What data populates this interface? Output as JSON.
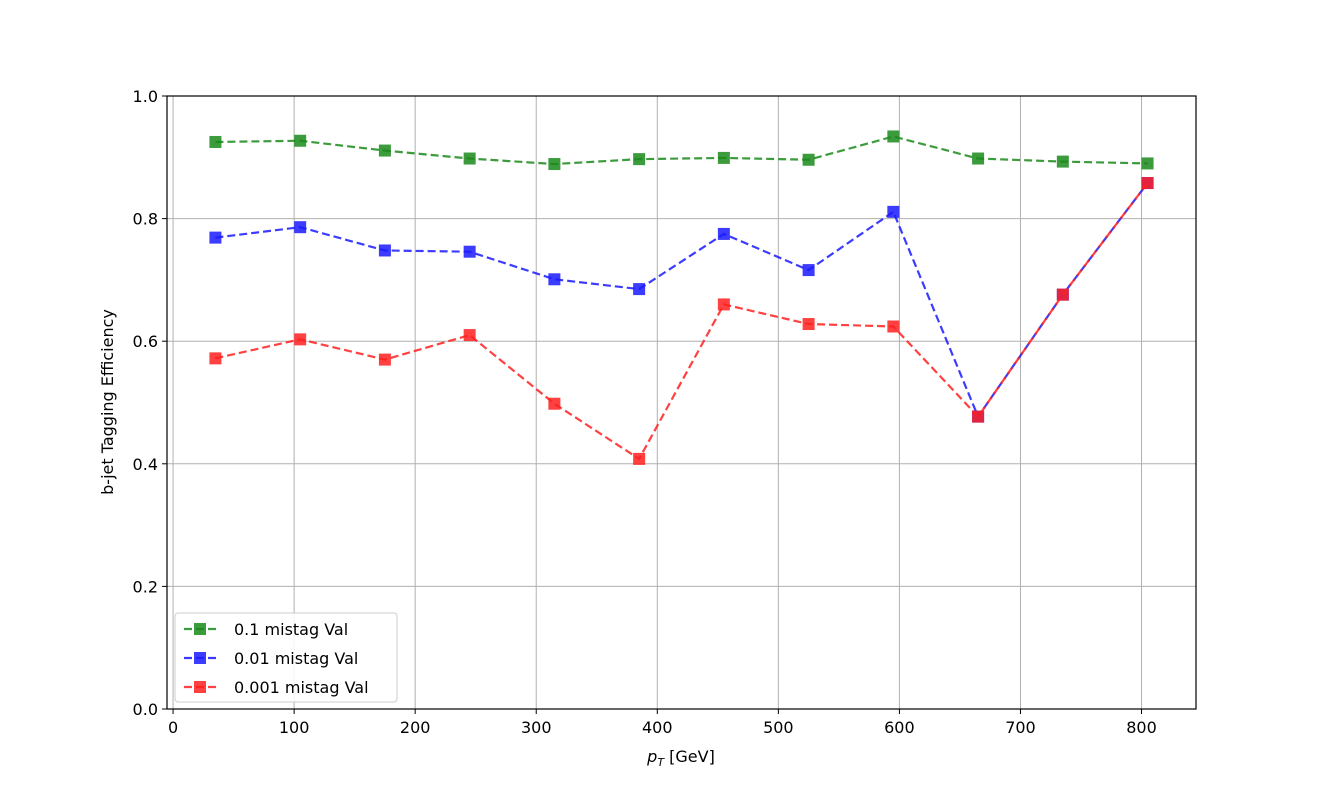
{
  "chart_data": {
    "type": "line",
    "title": "",
    "xlabel_italic": "p",
    "xlabel_sub": "T",
    "xlabel_rest": " [GeV]",
    "ylabel": "b-jet Tagging Efficiency",
    "xlim": [
      -5,
      845
    ],
    "ylim": [
      0.0,
      1.0
    ],
    "xticks": [
      0,
      100,
      200,
      300,
      400,
      500,
      600,
      700,
      800
    ],
    "yticks": [
      0.0,
      0.2,
      0.4,
      0.6,
      0.8,
      1.0
    ],
    "xtick_labels": [
      "0",
      "100",
      "200",
      "300",
      "400",
      "500",
      "600",
      "700",
      "800"
    ],
    "ytick_labels": [
      "0.0",
      "0.2",
      "0.4",
      "0.6",
      "0.8",
      "1.0"
    ],
    "grid": true,
    "legend_position": "lower-left",
    "line_style": "dashed",
    "marker": "square",
    "x": [
      35,
      105,
      175,
      245,
      315,
      385,
      455,
      525,
      595,
      665,
      735,
      805
    ],
    "series": [
      {
        "name": "0.1 mistag Val",
        "color": "#1a8a1a",
        "values": [
          0.925,
          0.927,
          0.911,
          0.898,
          0.889,
          0.897,
          0.899,
          0.896,
          0.934,
          0.898,
          0.893,
          0.89
        ]
      },
      {
        "name": "0.01 mistag Val",
        "color": "#1a1aff",
        "values": [
          0.769,
          0.786,
          0.748,
          0.746,
          0.701,
          0.685,
          0.775,
          0.716,
          0.811,
          0.477,
          0.676,
          0.858
        ]
      },
      {
        "name": "0.001 mistag Val",
        "color": "#ff2020",
        "values": [
          0.572,
          0.603,
          0.57,
          0.61,
          0.498,
          0.408,
          0.66,
          0.628,
          0.624,
          0.477,
          0.676,
          0.858
        ]
      }
    ]
  }
}
